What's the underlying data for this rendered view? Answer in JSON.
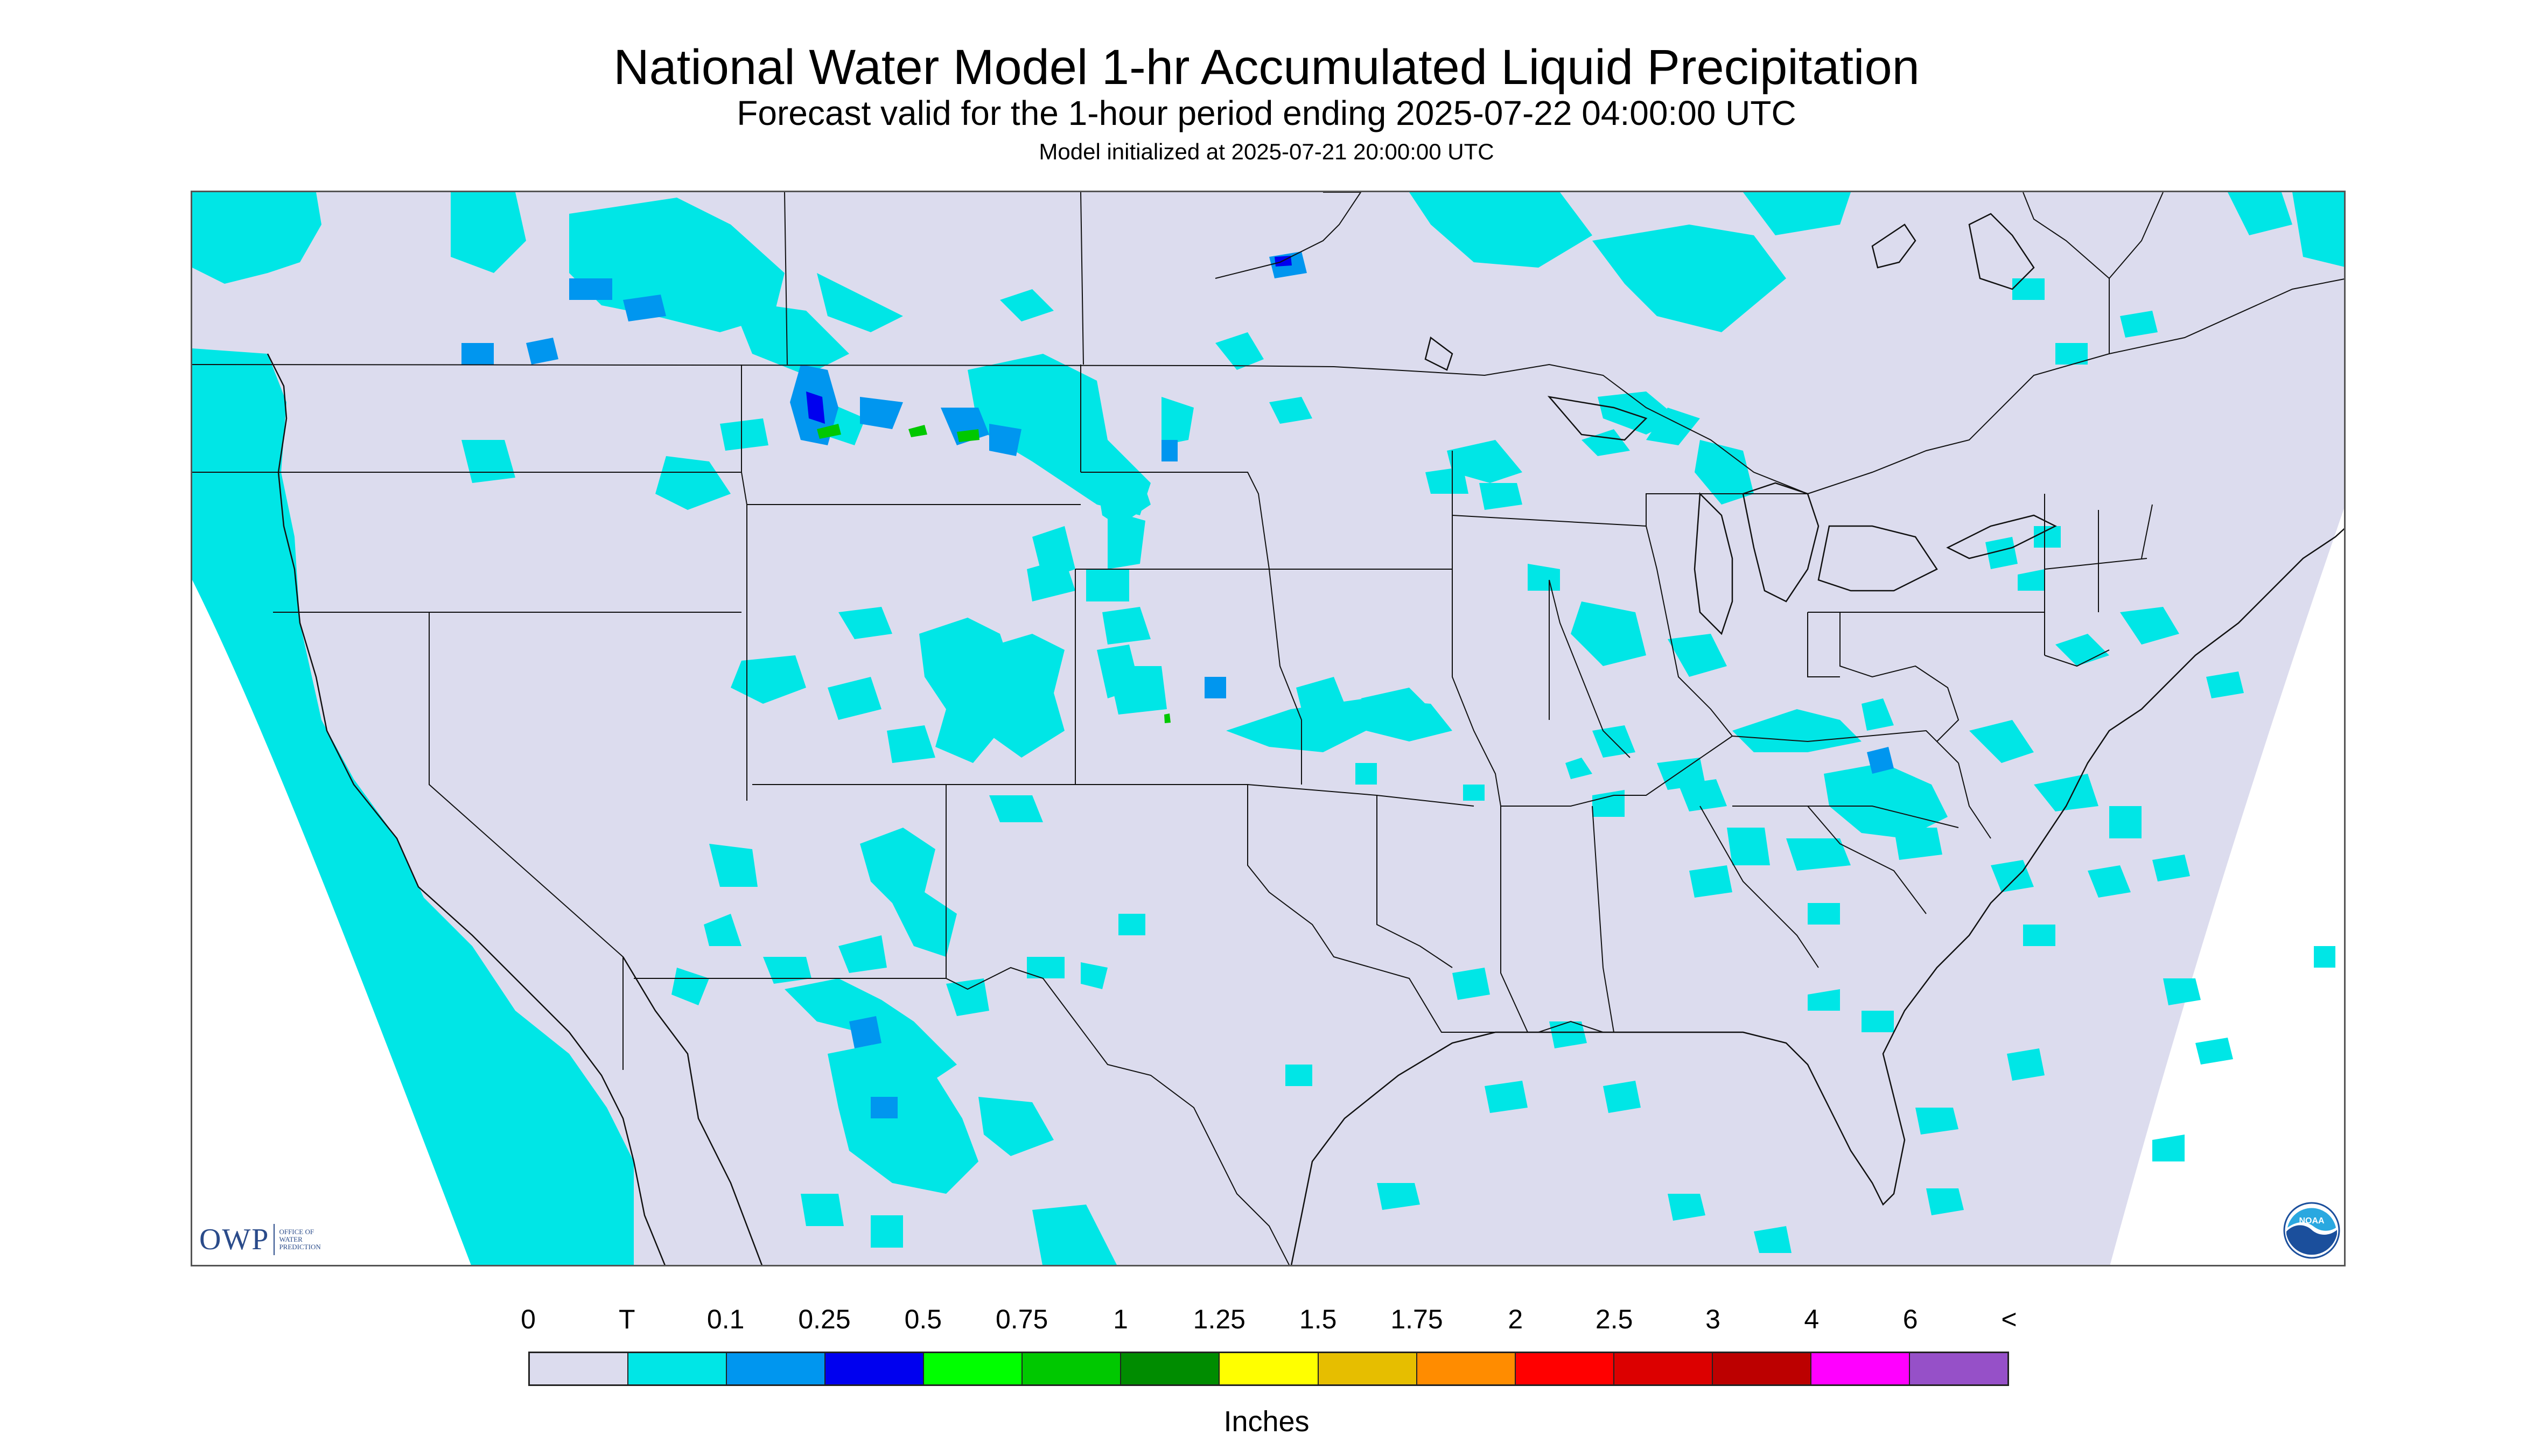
{
  "header": {
    "title": "National Water Model 1-hr Accumulated Liquid Precipitation",
    "subtitle": "Forecast valid for the 1-hour period ending 2025-07-22 04:00:00 UTC",
    "initialized": "Model initialized at 2025-07-21 20:00:00 UTC"
  },
  "branding": {
    "owp_letters": "OWP",
    "owp_text": "Office of Water Prediction",
    "noaa_text": "NOAA"
  },
  "legend": {
    "units": "Inches",
    "labels": [
      "0",
      "T",
      "0.1",
      "0.25",
      "0.5",
      "0.75",
      "1",
      "1.25",
      "1.5",
      "1.75",
      "2",
      "2.5",
      "3",
      "4",
      "6",
      "<"
    ],
    "colors": [
      "#dcdcee",
      "#00e6e6",
      "#0096ef",
      "#0000ef",
      "#00ff00",
      "#00c800",
      "#008c00",
      "#ffff00",
      "#e6be00",
      "#ff8c00",
      "#ff0000",
      "#dc0000",
      "#bc0000",
      "#ff00ff",
      "#9650c8"
    ]
  },
  "map": {
    "background_color": "#dcdcee",
    "outside_domain_color": "#ffffff",
    "boundary_color": "#111111",
    "precip_colors": {
      "trace": "#00e6e6",
      "light": "#0096ef",
      "moderate": "#0000ef",
      "heavy": "#00c800"
    }
  }
}
